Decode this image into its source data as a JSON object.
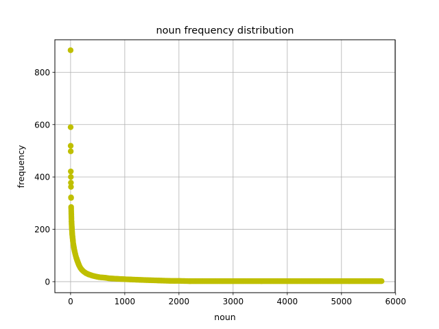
{
  "chart_data": {
    "type": "scatter",
    "title": "noun frequency distribution",
    "xlabel": "noun",
    "ylabel": "frequency",
    "xlim": [
      -290,
      5990
    ],
    "ylim": [
      -42,
      924
    ],
    "xticks": [
      0,
      1000,
      2000,
      3000,
      4000,
      5000,
      6000
    ],
    "yticks": [
      0,
      200,
      400,
      600,
      800
    ],
    "grid": true,
    "marker_color": "#bfbf00",
    "n_points": 5741,
    "head_points": [
      [
        0,
        884
      ],
      [
        1,
        590
      ],
      [
        2,
        519
      ],
      [
        3,
        498
      ],
      [
        4,
        421
      ],
      [
        5,
        400
      ],
      [
        6,
        378
      ],
      [
        7,
        362
      ],
      [
        8,
        322
      ],
      [
        9,
        320
      ],
      [
        10,
        285
      ],
      [
        11,
        278
      ],
      [
        12,
        270
      ],
      [
        13,
        262
      ],
      [
        14,
        255
      ],
      [
        15,
        247
      ],
      [
        16,
        240
      ],
      [
        17,
        232
      ],
      [
        18,
        228
      ],
      [
        19,
        222
      ],
      [
        20,
        218
      ],
      [
        22,
        210
      ],
      [
        24,
        203
      ],
      [
        26,
        196
      ],
      [
        28,
        189
      ],
      [
        30,
        182
      ],
      [
        33,
        176
      ],
      [
        36,
        170
      ],
      [
        39,
        164
      ],
      [
        42,
        158
      ],
      [
        45,
        152
      ],
      [
        48,
        147
      ],
      [
        52,
        142
      ],
      [
        56,
        137
      ],
      [
        60,
        132
      ],
      [
        65,
        126
      ],
      [
        70,
        121
      ],
      [
        75,
        116
      ],
      [
        80,
        111
      ],
      [
        86,
        106
      ],
      [
        92,
        101
      ],
      [
        99,
        96
      ],
      [
        106,
        91
      ],
      [
        114,
        86
      ],
      [
        122,
        81
      ],
      [
        131,
        76
      ],
      [
        140,
        71
      ],
      [
        150,
        66
      ],
      [
        160,
        61
      ],
      [
        170,
        57
      ],
      [
        180,
        53
      ],
      [
        195,
        49
      ],
      [
        210,
        45
      ],
      [
        225,
        42
      ],
      [
        240,
        39
      ],
      [
        260,
        36
      ],
      [
        280,
        33
      ],
      [
        300,
        31
      ],
      [
        330,
        28
      ],
      [
        360,
        26
      ],
      [
        400,
        23
      ],
      [
        440,
        21
      ],
      [
        480,
        19
      ],
      [
        530,
        17
      ],
      [
        580,
        16
      ],
      [
        640,
        15
      ],
      [
        700,
        13
      ],
      [
        770,
        12
      ],
      [
        850,
        11
      ],
      [
        940,
        10
      ],
      [
        1040,
        9
      ],
      [
        1150,
        8
      ],
      [
        1270,
        7
      ],
      [
        1400,
        6
      ],
      [
        1550,
        5
      ],
      [
        1700,
        4
      ],
      [
        1850,
        3
      ],
      [
        2000,
        3
      ],
      [
        2200,
        2
      ]
    ],
    "tail": {
      "x_start": 2200,
      "x_end": 5740,
      "y": 2
    }
  }
}
